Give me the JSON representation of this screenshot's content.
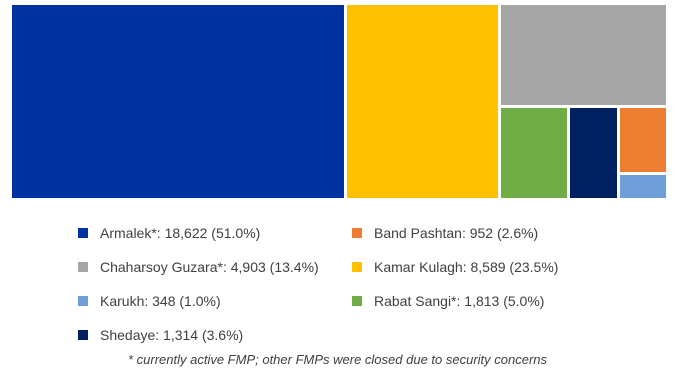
{
  "chart_data": {
    "type": "treemap",
    "series": [
      {
        "name": "Armalek*",
        "value": 18622,
        "percent": 51.0,
        "color": "#0033a0",
        "label": "Armalek*: 18,622 (51.0%)"
      },
      {
        "name": "Kamar Kulagh",
        "value": 8589,
        "percent": 23.5,
        "color": "#ffc000",
        "label": "Kamar Kulagh: 8,589 (23.5%)"
      },
      {
        "name": "Chaharsoy Guzara*",
        "value": 4903,
        "percent": 13.4,
        "color": "#a6a6a6",
        "label": "Chaharsoy Guzara*: 4,903 (13.4%)"
      },
      {
        "name": "Rabat Sangi*",
        "value": 1813,
        "percent": 5.0,
        "color": "#70ad47",
        "label": "Rabat Sangi*: 1,813 (5.0%)"
      },
      {
        "name": "Shedaye",
        "value": 1314,
        "percent": 3.6,
        "color": "#002060",
        "label": "Shedaye: 1,314 (3.6%)"
      },
      {
        "name": "Band Pashtan",
        "value": 952,
        "percent": 2.6,
        "color": "#ed7d31",
        "label": "Band Pashtan: 952 (2.6%)"
      },
      {
        "name": "Karukh",
        "value": 348,
        "percent": 1.0,
        "color": "#6f9ed8",
        "label": "Karukh: 348 (1.0%)"
      }
    ],
    "legend_order": [
      "Armalek*",
      "Band Pashtan",
      "Chaharsoy Guzara*",
      "Kamar Kulagh",
      "Karukh",
      "Rabat Sangi*",
      "Shedaye"
    ],
    "footnote": "* currently active FMP; other FMPs were closed due to security concerns"
  }
}
